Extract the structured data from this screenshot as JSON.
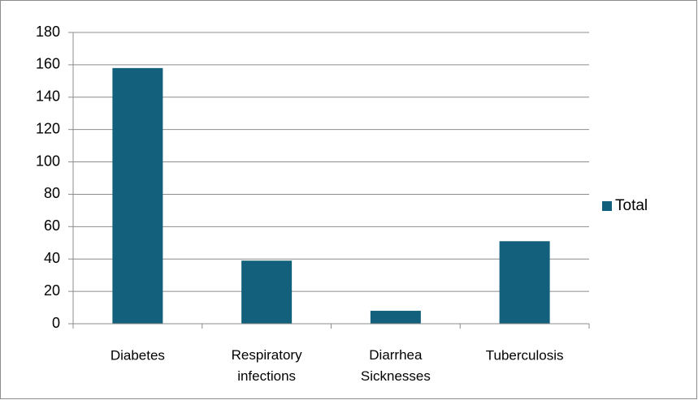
{
  "chart_data": {
    "type": "bar",
    "categories": [
      "Diabetes",
      "Respiratory infections",
      "Diarrhea Sicknesses",
      "Tuberculosis"
    ],
    "series": [
      {
        "name": "Total",
        "color": "#13607c",
        "values": [
          158,
          39,
          8,
          51
        ]
      }
    ],
    "ylim": [
      0,
      180
    ],
    "yticks": [
      0,
      20,
      40,
      60,
      80,
      100,
      120,
      140,
      160,
      180
    ],
    "grid": true,
    "legend": "right"
  }
}
